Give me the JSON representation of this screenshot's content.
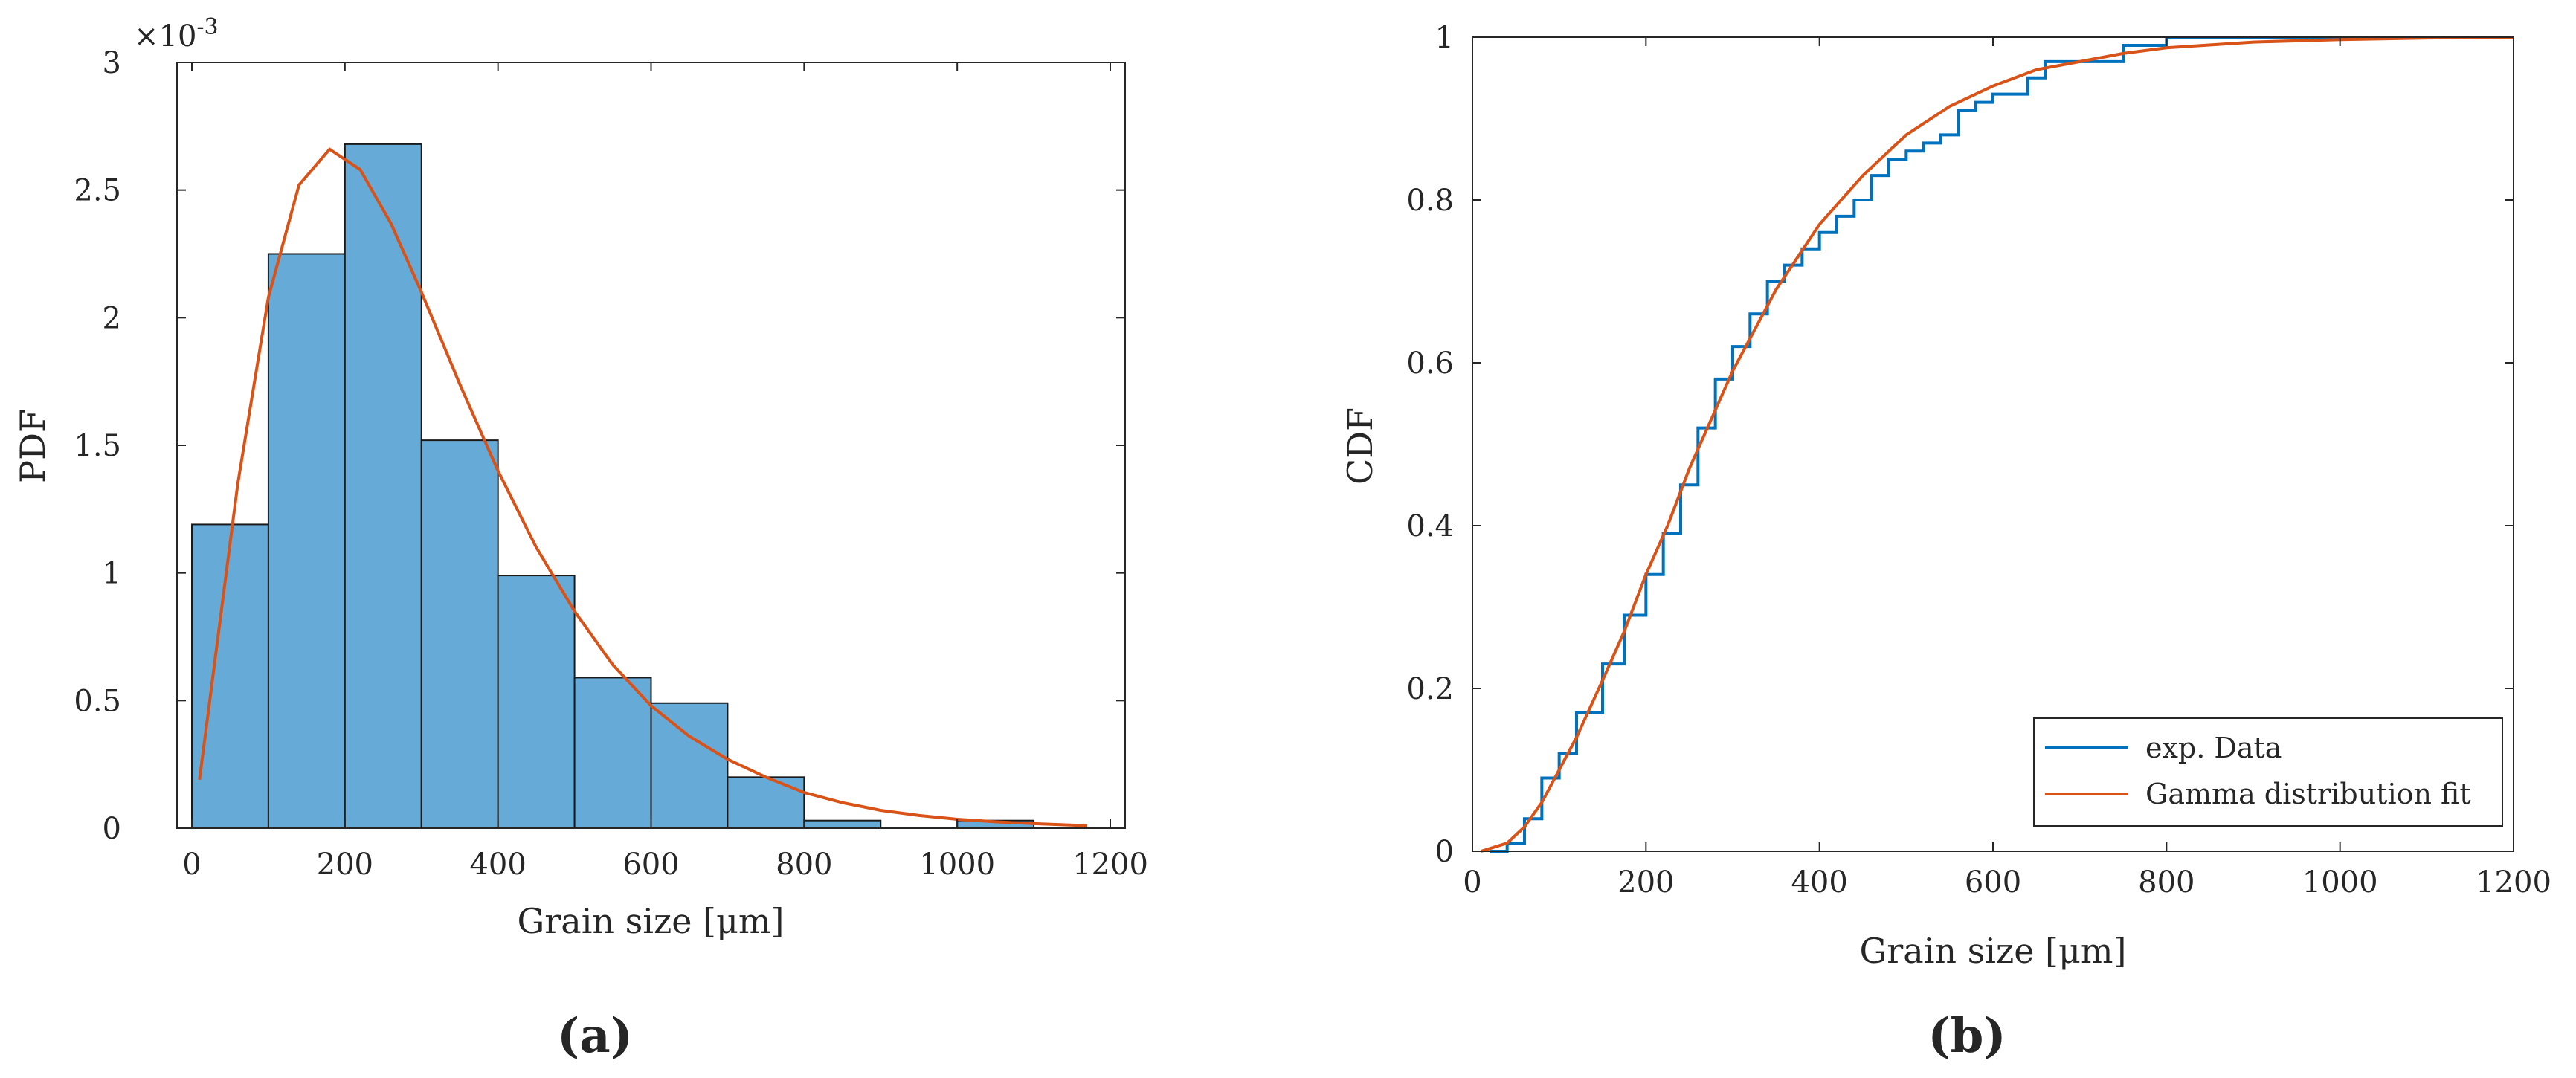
{
  "chart_data": [
    {
      "panel": "(a)",
      "type": "bar",
      "xlabel": "Grain size [μm]",
      "ylabel": "PDF",
      "y_exponent_label": "×10",
      "y_exponent_power": "-3",
      "xlim": [
        0,
        1200
      ],
      "ylim": [
        0,
        3
      ],
      "x_ticks": [
        0,
        200,
        400,
        600,
        800,
        1000,
        1200
      ],
      "y_ticks": [
        0,
        0.5,
        1,
        1.5,
        2,
        2.5,
        3
      ],
      "bin_edges": [
        0,
        100,
        200,
        300,
        400,
        500,
        600,
        700,
        800,
        900,
        1000,
        1100
      ],
      "values": [
        1.19,
        2.25,
        2.68,
        1.52,
        0.99,
        0.59,
        0.49,
        0.2,
        0.03,
        0.0,
        0.03
      ],
      "bar_color": "#66aad8",
      "fit_color": "#d95319",
      "fit_curve": {
        "x": [
          10,
          60,
          100,
          140,
          180,
          220,
          260,
          300,
          350,
          400,
          450,
          500,
          550,
          600,
          650,
          700,
          750,
          800,
          850,
          900,
          950,
          1000,
          1050,
          1100,
          1170
        ],
        "y": [
          0.19,
          1.35,
          2.08,
          2.52,
          2.66,
          2.58,
          2.37,
          2.1,
          1.74,
          1.4,
          1.1,
          0.85,
          0.64,
          0.48,
          0.36,
          0.27,
          0.2,
          0.14,
          0.1,
          0.07,
          0.05,
          0.035,
          0.025,
          0.018,
          0.01
        ]
      }
    },
    {
      "panel": "(b)",
      "type": "line",
      "xlabel": "Grain size [μm]",
      "ylabel": "CDF",
      "xlim": [
        0,
        1200
      ],
      "ylim": [
        0,
        1
      ],
      "x_ticks": [
        0,
        200,
        400,
        600,
        800,
        1000,
        1200
      ],
      "y_ticks": [
        0,
        0.2,
        0.4,
        0.6,
        0.8,
        1
      ],
      "legend_position": "bottom-right",
      "series": [
        {
          "name": "exp. Data",
          "color": "#0072bd",
          "x": [
            20,
            40,
            60,
            80,
            100,
            120,
            150,
            175,
            200,
            220,
            240,
            260,
            280,
            300,
            320,
            340,
            360,
            380,
            400,
            420,
            440,
            460,
            480,
            500,
            520,
            540,
            560,
            580,
            600,
            620,
            640,
            660,
            700,
            750,
            800,
            850,
            900,
            1000,
            1080
          ],
          "y": [
            0.0,
            0.01,
            0.04,
            0.09,
            0.12,
            0.17,
            0.23,
            0.29,
            0.34,
            0.39,
            0.45,
            0.52,
            0.58,
            0.62,
            0.66,
            0.7,
            0.72,
            0.74,
            0.76,
            0.78,
            0.8,
            0.83,
            0.85,
            0.86,
            0.87,
            0.88,
            0.91,
            0.92,
            0.93,
            0.93,
            0.95,
            0.97,
            0.97,
            0.99,
            1.0,
            1.0,
            1.0,
            1.0,
            1.0
          ]
        },
        {
          "name": "Gamma distribution fit",
          "color": "#d95319",
          "x": [
            10,
            40,
            60,
            80,
            100,
            120,
            150,
            175,
            200,
            225,
            250,
            275,
            300,
            325,
            350,
            375,
            400,
            450,
            500,
            550,
            600,
            650,
            700,
            750,
            800,
            900,
            1000,
            1100,
            1200
          ],
          "y": [
            0.0,
            0.01,
            0.03,
            0.06,
            0.1,
            0.14,
            0.21,
            0.27,
            0.34,
            0.4,
            0.47,
            0.53,
            0.59,
            0.64,
            0.69,
            0.73,
            0.77,
            0.83,
            0.88,
            0.915,
            0.94,
            0.96,
            0.97,
            0.98,
            0.987,
            0.994,
            0.997,
            0.999,
            1.0
          ]
        }
      ]
    }
  ]
}
